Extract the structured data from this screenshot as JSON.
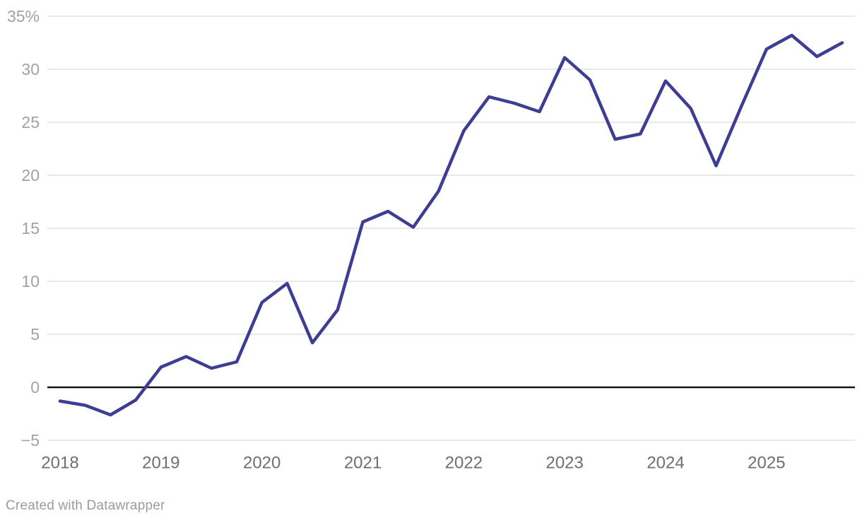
{
  "chart_data": {
    "type": "line",
    "title": "",
    "xlabel": "",
    "ylabel": "",
    "unit": "%",
    "grid": "horizontal",
    "legend": "none",
    "ylim": [
      -5,
      35
    ],
    "zero_baseline": true,
    "x": [
      "2018 Q1",
      "2018 Q2",
      "2018 Q3",
      "2018 Q4",
      "2019 Q1",
      "2019 Q2",
      "2019 Q3",
      "2019 Q4",
      "2020 Q1",
      "2020 Q2",
      "2020 Q3",
      "2020 Q4",
      "2021 Q1",
      "2021 Q2",
      "2021 Q3",
      "2021 Q4",
      "2022 Q1",
      "2022 Q2",
      "2022 Q3",
      "2022 Q4",
      "2023 Q1",
      "2023 Q2",
      "2023 Q3",
      "2023 Q4",
      "2024 Q1",
      "2024 Q2",
      "2024 Q3",
      "2024 Q4",
      "2025 Q1",
      "2025 Q2",
      "2025 Q3",
      "2025 Q4"
    ],
    "values": [
      -1.3,
      -1.7,
      -2.6,
      -1.2,
      1.9,
      2.9,
      1.8,
      2.4,
      8.0,
      9.8,
      4.2,
      7.3,
      15.6,
      16.6,
      15.1,
      18.5,
      24.2,
      27.4,
      26.8,
      26.0,
      31.1,
      29.0,
      23.4,
      23.9,
      28.9,
      26.3,
      20.9,
      26.5,
      31.9,
      33.2,
      31.2,
      32.5
    ],
    "y_ticks": [
      {
        "value": 35,
        "label": "35%"
      },
      {
        "value": 30,
        "label": "30"
      },
      {
        "value": 25,
        "label": "25"
      },
      {
        "value": 20,
        "label": "20"
      },
      {
        "value": 15,
        "label": "15"
      },
      {
        "value": 10,
        "label": "10"
      },
      {
        "value": 5,
        "label": "5"
      },
      {
        "value": 0,
        "label": "0"
      },
      {
        "value": -5,
        "label": "−5"
      }
    ],
    "x_ticks": [
      "2018",
      "2019",
      "2020",
      "2021",
      "2022",
      "2023",
      "2024",
      "2025"
    ],
    "colors": {
      "line": "#3e3d94",
      "gridline": "#e8e8e8",
      "zero_line": "#141414",
      "y_tick_label": "#a2a2a2",
      "x_tick_label": "#6f6f6f"
    }
  },
  "footer": {
    "credit": "Created with Datawrapper"
  }
}
